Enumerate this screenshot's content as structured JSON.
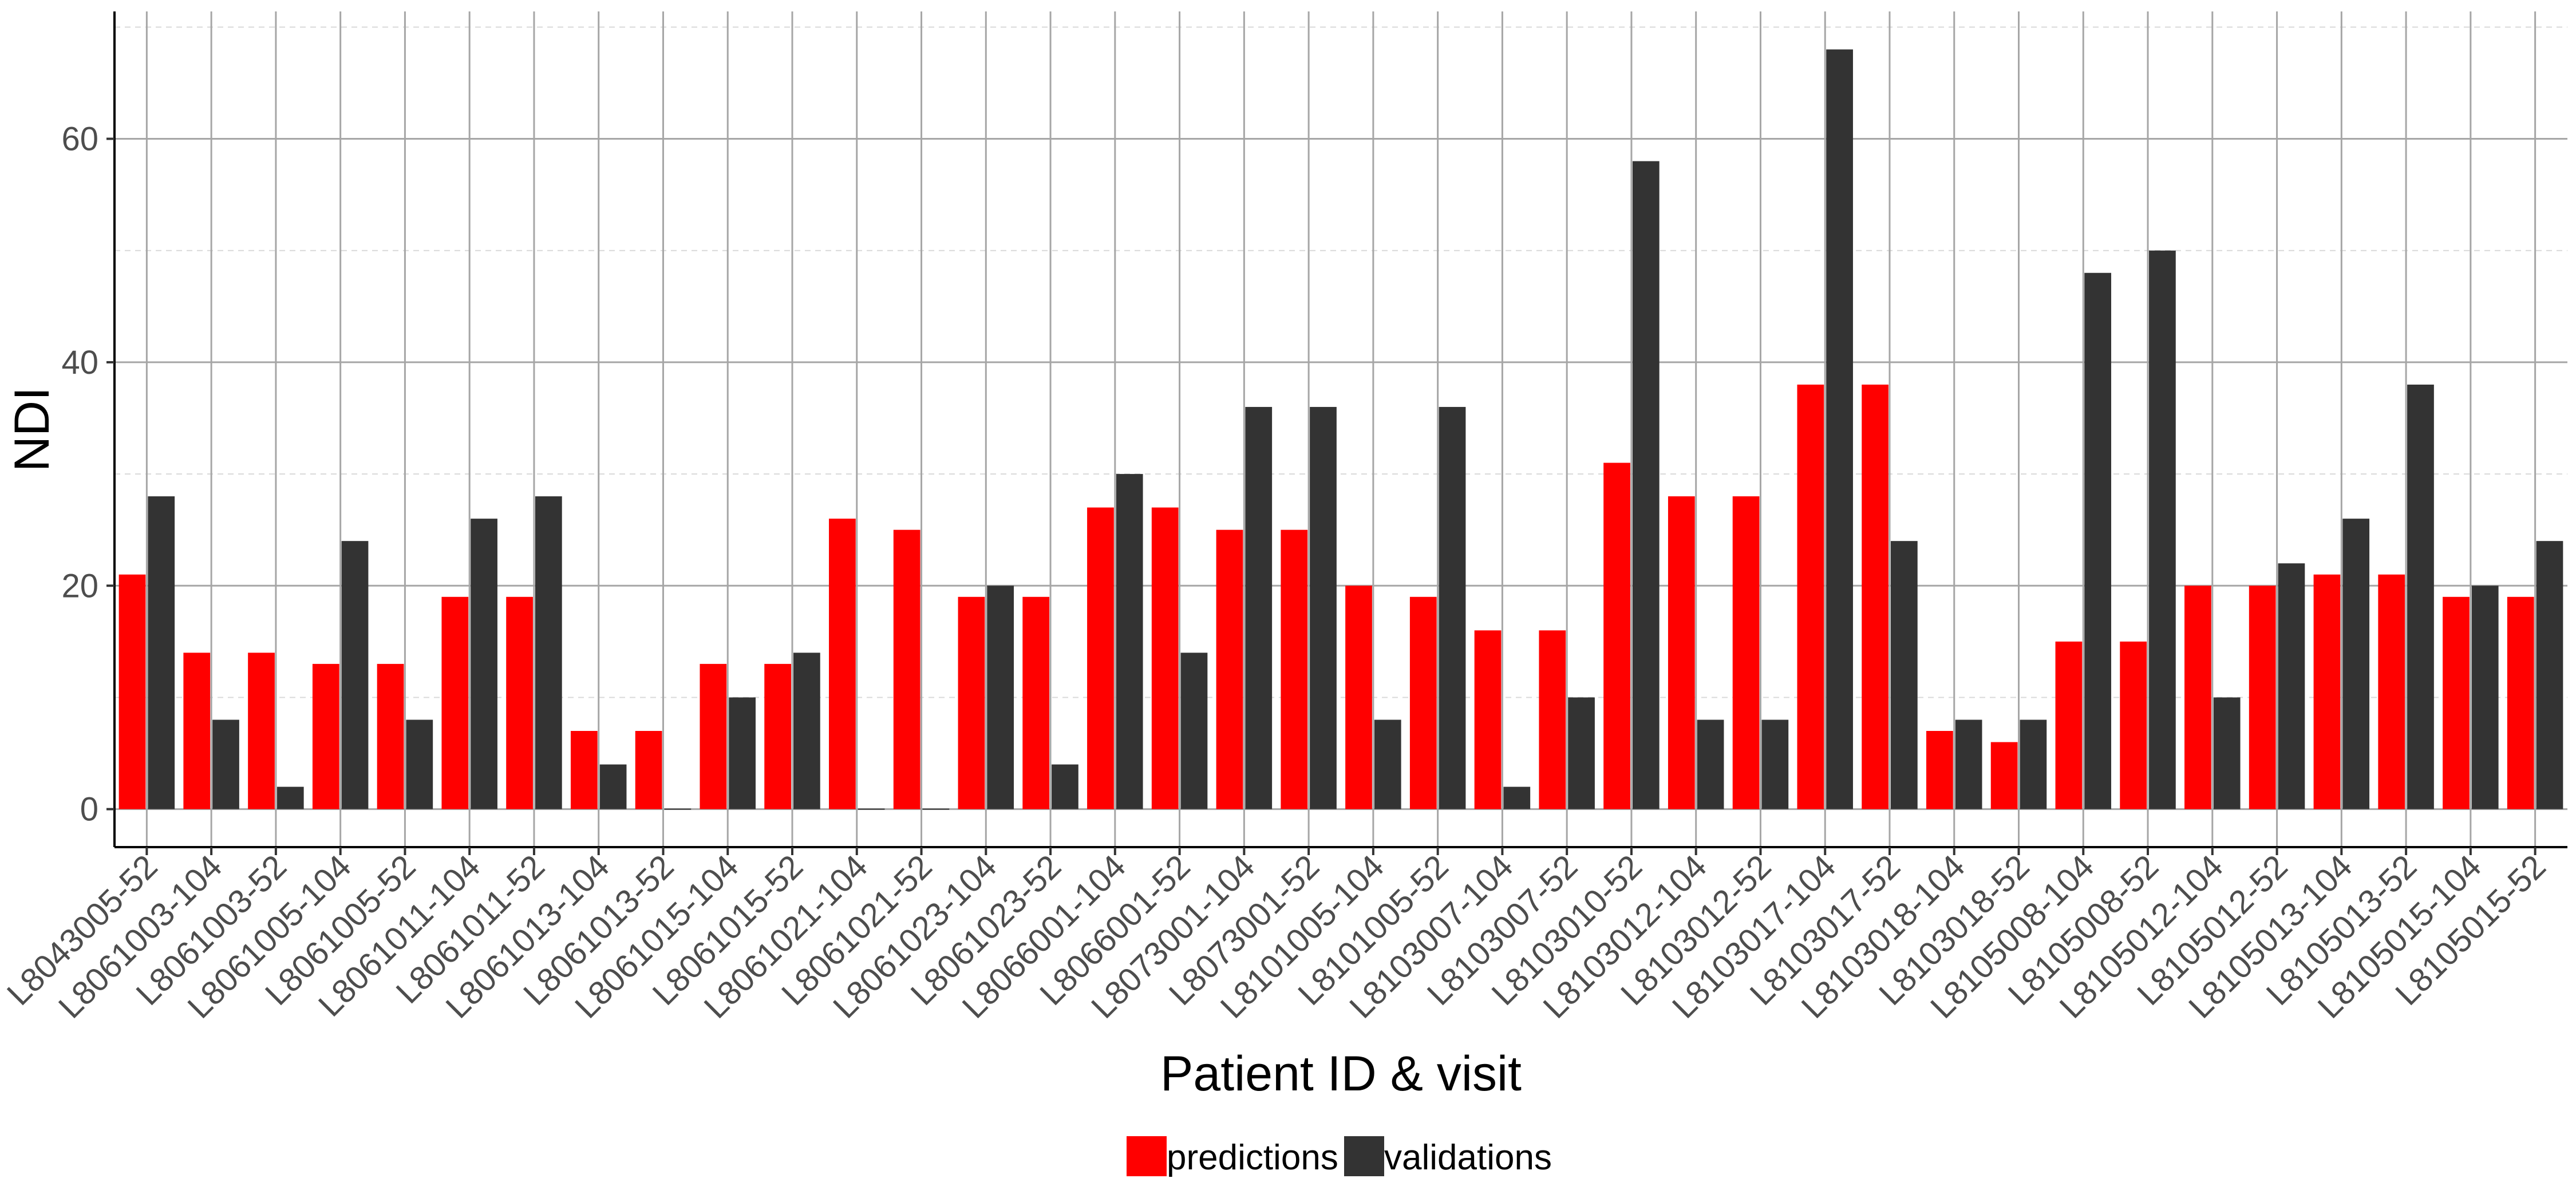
{
  "chart_data": {
    "type": "bar",
    "xlabel": "Patient ID & visit",
    "ylabel": "NDI",
    "ylim": [
      -3.4,
      71.4
    ],
    "yticks": [
      0,
      20,
      40,
      60
    ],
    "grid": true,
    "legend_position": "bottom",
    "categories": [
      "L8043005-52",
      "L8061003-104",
      "L8061003-52",
      "L8061005-104",
      "L8061005-52",
      "L8061011-104",
      "L8061011-52",
      "L8061013-104",
      "L8061013-52",
      "L8061015-104",
      "L8061015-52",
      "L8061021-104",
      "L8061021-52",
      "L8061023-104",
      "L8061023-52",
      "L8066001-104",
      "L8066001-52",
      "L8073001-104",
      "L8073001-52",
      "L8101005-104",
      "L8101005-52",
      "L8103007-104",
      "L8103007-52",
      "L8103010-52",
      "L8103012-104",
      "L8103012-52",
      "L8103017-104",
      "L8103017-52",
      "L8103018-104",
      "L8103018-52",
      "L8105008-104",
      "L8105008-52",
      "L8105012-104",
      "L8105012-52",
      "L8105013-104",
      "L8105013-52",
      "L8105015-104",
      "L8105015-52"
    ],
    "series": [
      {
        "name": "predictions",
        "color": "#ff0000",
        "values": [
          21,
          14,
          14,
          13,
          13,
          19,
          19,
          7,
          7,
          13,
          13,
          26,
          25,
          19,
          19,
          27,
          27,
          25,
          25,
          20,
          19,
          16,
          16,
          31,
          28,
          28,
          38,
          38,
          7,
          6,
          15,
          15,
          20,
          20,
          21,
          21,
          19,
          19
        ]
      },
      {
        "name": "validations",
        "color": "#333333",
        "values": [
          28,
          8,
          2,
          24,
          8,
          26,
          28,
          4,
          0,
          10,
          14,
          0,
          0,
          20,
          4,
          30,
          14,
          36,
          36,
          8,
          36,
          2,
          10,
          58,
          8,
          8,
          68,
          24,
          8,
          8,
          48,
          50,
          10,
          22,
          26,
          38,
          20,
          24
        ]
      }
    ]
  }
}
